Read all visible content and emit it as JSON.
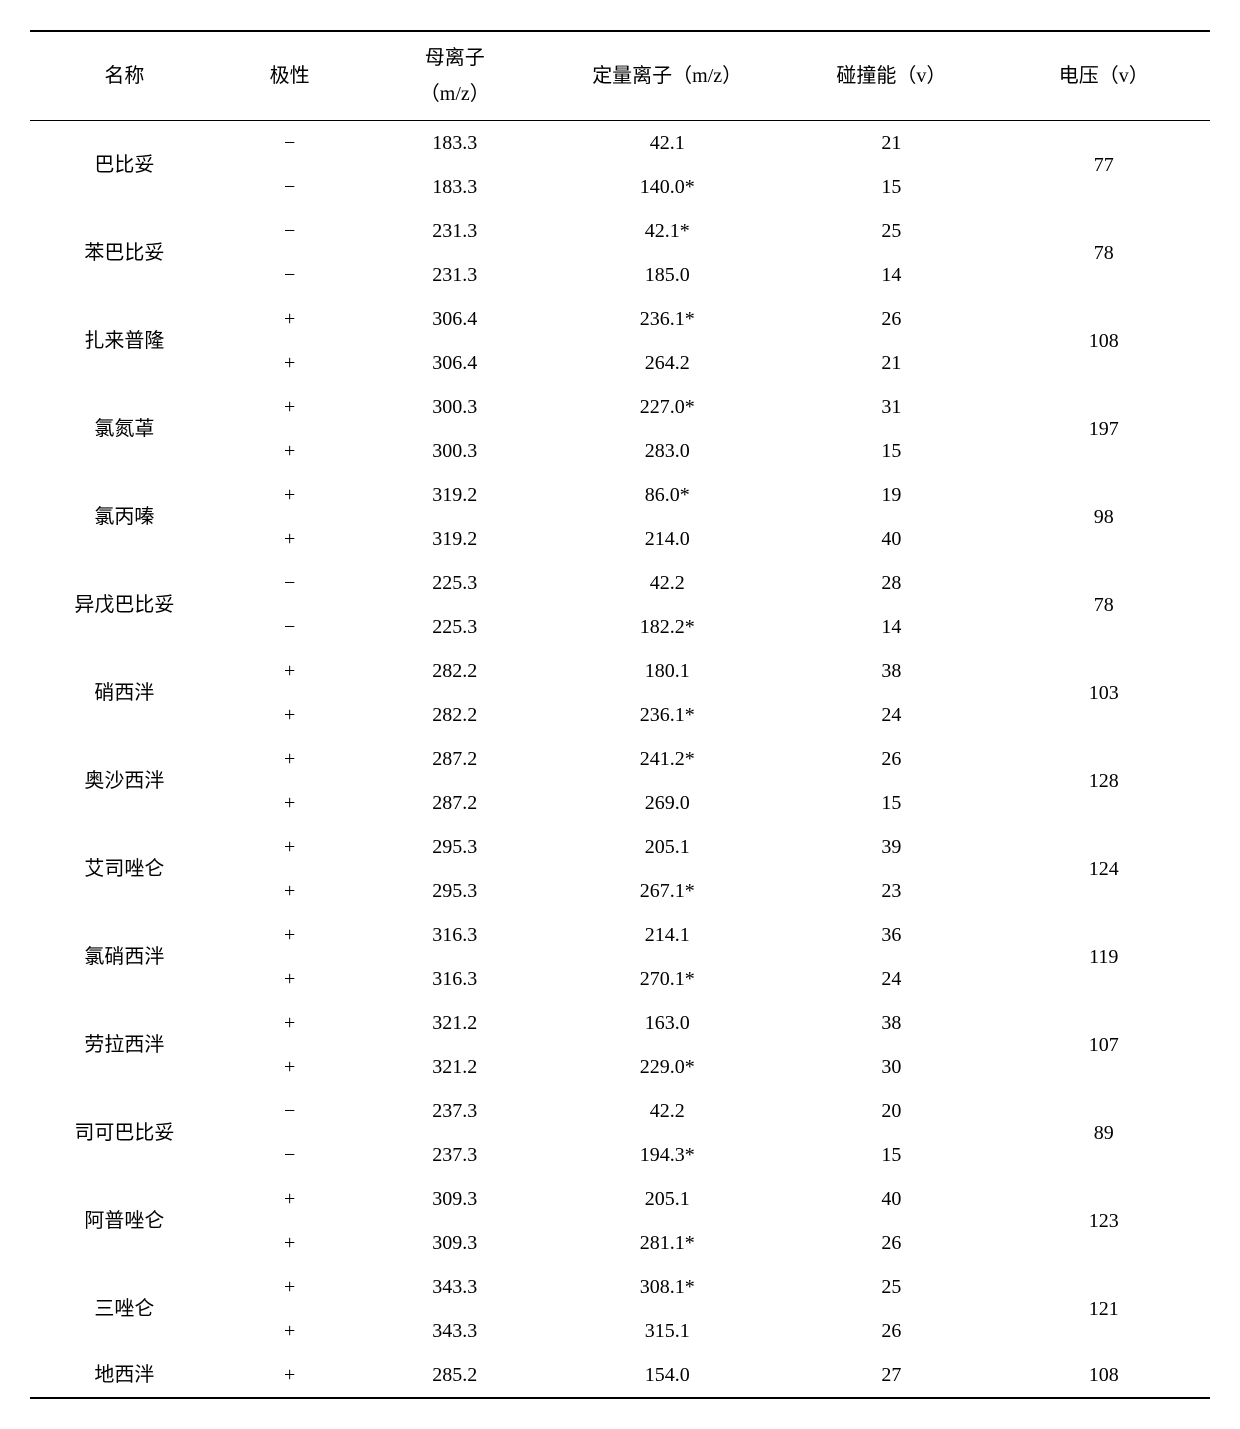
{
  "table": {
    "headers": {
      "name": "名称",
      "polarity": "极性",
      "parent_ion_line1": "母离子",
      "parent_ion_line2": "（m/z）",
      "quant_ion": "定量离子（m/z）",
      "collision": "碰撞能（v）",
      "voltage": "电压（v）"
    },
    "rows": [
      {
        "name": "巴比妥",
        "polarity": "−",
        "parent": "183.3",
        "quant": "42.1",
        "collision": "21",
        "voltage": "77",
        "rowspan_name": 2,
        "rowspan_voltage": 2
      },
      {
        "name": "",
        "polarity": "−",
        "parent": "183.3",
        "quant": "140.0*",
        "collision": "15",
        "voltage": ""
      },
      {
        "name": "苯巴比妥",
        "polarity": "−",
        "parent": "231.3",
        "quant": "42.1*",
        "collision": "25",
        "voltage": "78",
        "rowspan_name": 2,
        "rowspan_voltage": 2
      },
      {
        "name": "",
        "polarity": "−",
        "parent": "231.3",
        "quant": "185.0",
        "collision": "14",
        "voltage": ""
      },
      {
        "name": "扎来普隆",
        "polarity": "+",
        "parent": "306.4",
        "quant": "236.1*",
        "collision": "26",
        "voltage": "108",
        "rowspan_name": 2,
        "rowspan_voltage": 2
      },
      {
        "name": "",
        "polarity": "+",
        "parent": "306.4",
        "quant": "264.2",
        "collision": "21",
        "voltage": ""
      },
      {
        "name": "氯氮䓬",
        "polarity": "+",
        "parent": "300.3",
        "quant": "227.0*",
        "collision": "31",
        "voltage": "197",
        "rowspan_name": 2,
        "rowspan_voltage": 2
      },
      {
        "name": "",
        "polarity": "+",
        "parent": "300.3",
        "quant": "283.0",
        "collision": "15",
        "voltage": ""
      },
      {
        "name": "氯丙嗪",
        "polarity": "+",
        "parent": "319.2",
        "quant": "86.0*",
        "collision": "19",
        "voltage": "98",
        "rowspan_name": 2,
        "rowspan_voltage": 2
      },
      {
        "name": "",
        "polarity": "+",
        "parent": "319.2",
        "quant": "214.0",
        "collision": "40",
        "voltage": ""
      },
      {
        "name": "异戊巴比妥",
        "polarity": "−",
        "parent": "225.3",
        "quant": "42.2",
        "collision": "28",
        "voltage": "78",
        "rowspan_name": 2,
        "rowspan_voltage": 2
      },
      {
        "name": "",
        "polarity": "−",
        "parent": "225.3",
        "quant": "182.2*",
        "collision": "14",
        "voltage": ""
      },
      {
        "name": "硝西泮",
        "polarity": "+",
        "parent": "282.2",
        "quant": "180.1",
        "collision": "38",
        "voltage": "103",
        "rowspan_name": 2,
        "rowspan_voltage": 2
      },
      {
        "name": "",
        "polarity": "+",
        "parent": "282.2",
        "quant": "236.1*",
        "collision": "24",
        "voltage": ""
      },
      {
        "name": "奥沙西泮",
        "polarity": "+",
        "parent": "287.2",
        "quant": "241.2*",
        "collision": "26",
        "voltage": "128",
        "rowspan_name": 2,
        "rowspan_voltage": 2
      },
      {
        "name": "",
        "polarity": "+",
        "parent": "287.2",
        "quant": "269.0",
        "collision": "15",
        "voltage": ""
      },
      {
        "name": "艾司唑仑",
        "polarity": "+",
        "parent": "295.3",
        "quant": "205.1",
        "collision": "39",
        "voltage": "124",
        "rowspan_name": 2,
        "rowspan_voltage": 2
      },
      {
        "name": "",
        "polarity": "+",
        "parent": "295.3",
        "quant": "267.1*",
        "collision": "23",
        "voltage": ""
      },
      {
        "name": "氯硝西泮",
        "polarity": "+",
        "parent": "316.3",
        "quant": "214.1",
        "collision": "36",
        "voltage": "119",
        "rowspan_name": 2,
        "rowspan_voltage": 2
      },
      {
        "name": "",
        "polarity": "+",
        "parent": "316.3",
        "quant": "270.1*",
        "collision": "24",
        "voltage": ""
      },
      {
        "name": "劳拉西泮",
        "polarity": "+",
        "parent": "321.2",
        "quant": "163.0",
        "collision": "38",
        "voltage": "107",
        "rowspan_name": 2,
        "rowspan_voltage": 2
      },
      {
        "name": "",
        "polarity": "+",
        "parent": "321.2",
        "quant": "229.0*",
        "collision": "30",
        "voltage": ""
      },
      {
        "name": "司可巴比妥",
        "polarity": "−",
        "parent": "237.3",
        "quant": "42.2",
        "collision": "20",
        "voltage": "89",
        "rowspan_name": 2,
        "rowspan_voltage": 2
      },
      {
        "name": "",
        "polarity": "−",
        "parent": "237.3",
        "quant": "194.3*",
        "collision": "15",
        "voltage": ""
      },
      {
        "name": "阿普唑仑",
        "polarity": "+",
        "parent": "309.3",
        "quant": "205.1",
        "collision": "40",
        "voltage": "123",
        "rowspan_name": 2,
        "rowspan_voltage": 2
      },
      {
        "name": "",
        "polarity": "+",
        "parent": "309.3",
        "quant": "281.1*",
        "collision": "26",
        "voltage": ""
      },
      {
        "name": "三唑仑",
        "polarity": "+",
        "parent": "343.3",
        "quant": "308.1*",
        "collision": "25",
        "voltage": "121",
        "rowspan_name": 2,
        "rowspan_voltage": 2
      },
      {
        "name": "",
        "polarity": "+",
        "parent": "343.3",
        "quant": "315.1",
        "collision": "26",
        "voltage": ""
      },
      {
        "name": "地西泮",
        "polarity": "+",
        "parent": "285.2",
        "quant": "154.0",
        "collision": "27",
        "voltage": "108",
        "rowspan_name": 1,
        "rowspan_voltage": 1
      }
    ],
    "style": {
      "font_size": 20,
      "text_color": "#000000",
      "background_color": "#ffffff",
      "border_color": "#000000",
      "top_border_width": 2,
      "header_bottom_border_width": 1.5,
      "bottom_border_width": 2
    }
  }
}
